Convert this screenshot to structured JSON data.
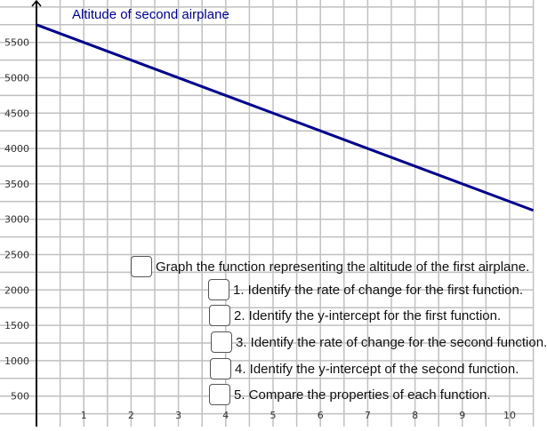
{
  "graph": {
    "function_label": "Altitude of second airplane",
    "x_ticks": [
      "1",
      "2",
      "3",
      "4",
      "5",
      "6",
      "7",
      "8",
      "9",
      "10"
    ],
    "y_ticks": [
      "500",
      "1000",
      "1500",
      "2000",
      "2500",
      "3000",
      "3500",
      "4000",
      "4500",
      "5000",
      "5500"
    ],
    "colors": {
      "line": "#00008b",
      "grid": "#c0c0c0",
      "axis": "#000000",
      "label": "#00008b"
    }
  },
  "chart_data": {
    "type": "line",
    "series": [
      {
        "name": "Altitude of second airplane",
        "x": [
          0,
          10.5
        ],
        "y": [
          5750,
          3125
        ]
      }
    ],
    "xlim": [
      0,
      10.5
    ],
    "ylim": [
      0,
      6000
    ],
    "grid": true
  },
  "tasks": [
    {
      "label": "Graph the function representing the altitude of the first airplane."
    },
    {
      "label": "1. Identify the rate of change for the first function."
    },
    {
      "label": "2. Identify the y-intercept for the first function."
    },
    {
      "label": "3. Identify the rate of change for the second function."
    },
    {
      "label": "4. Identify the y-intercept of the second function."
    },
    {
      "label": "5. Compare the properties of each function."
    }
  ]
}
